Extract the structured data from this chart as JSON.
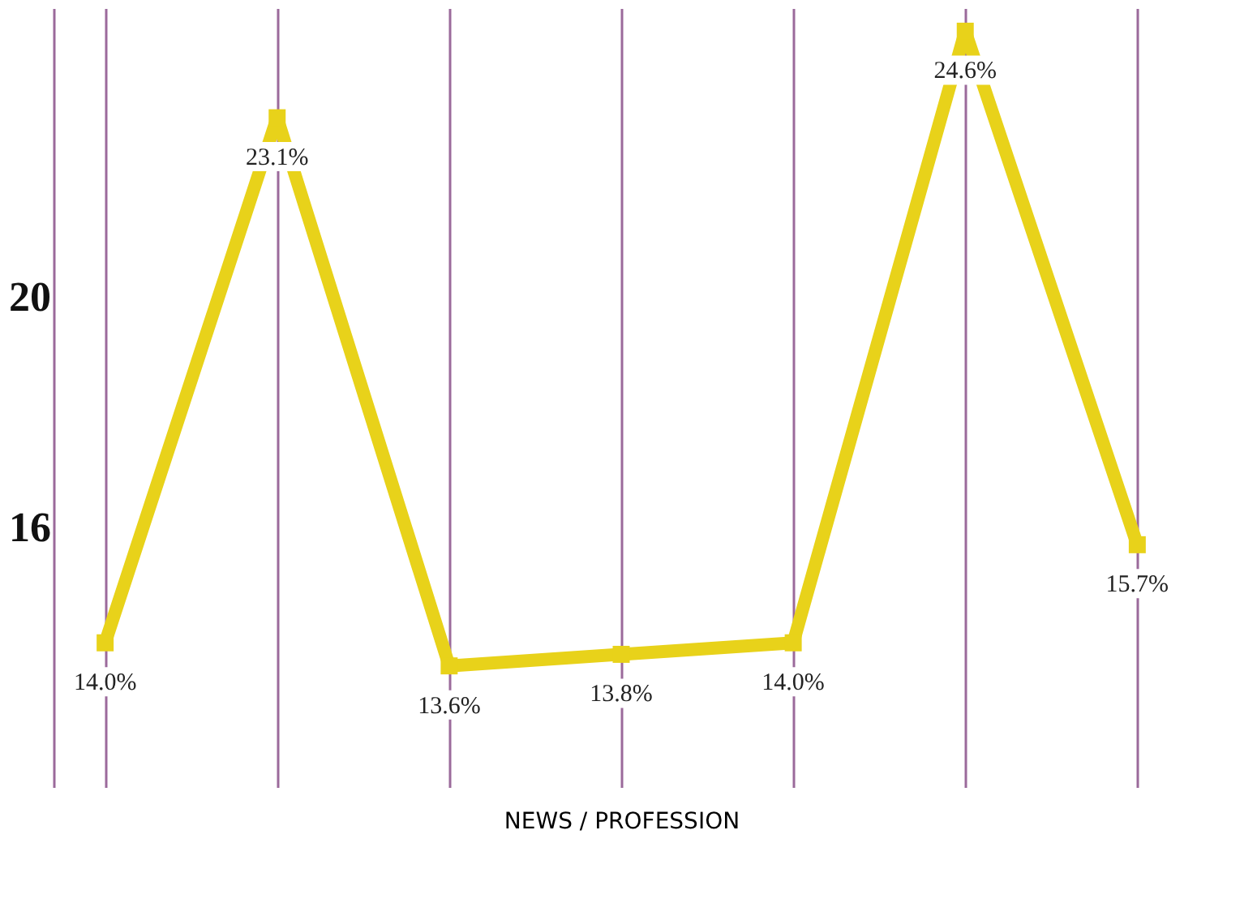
{
  "chart_data": {
    "type": "line",
    "xlabel": "NEWS / PROFESSION",
    "categories": [
      null,
      null,
      null,
      null,
      null,
      null,
      null
    ],
    "series": [
      {
        "color": "#e8d21a",
        "values": [
          14.0,
          23.1,
          13.6,
          13.8,
          14.0,
          24.6,
          15.7
        ],
        "value_labels": [
          "14.0%",
          "23.1%",
          "13.6%",
          "13.8%",
          "14.0%",
          "24.6%",
          "15.7%"
        ]
      }
    ],
    "ylim": [
      11.5,
      25
    ],
    "yticks": [
      16,
      20
    ],
    "grid": "x",
    "tick_labels": "y",
    "marker": "square",
    "line_style": "solid"
  }
}
